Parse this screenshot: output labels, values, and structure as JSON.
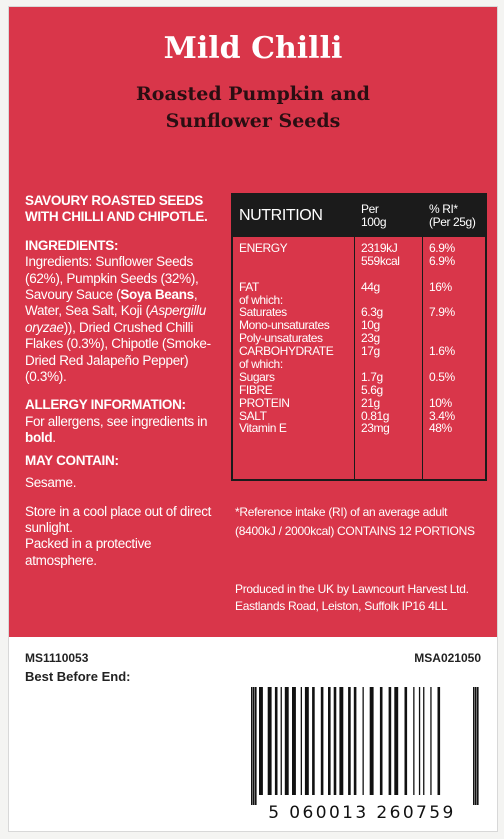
{
  "header": {
    "title": "Mild Chilli",
    "subtitle_line1": "Roasted Pumpkin and",
    "subtitle_line2": "Sunflower Seeds"
  },
  "left_panel": {
    "tagline_line1": "SAVOURY ROASTED SEEDS",
    "tagline_line2": "WITH CHILLI AND CHIPOTLE.",
    "ingredients_heading": "INGREDIENTS:",
    "ingredients": {
      "lead": "Ingredients: Sunflower Seeds (62%), Pumpkin Seeds (32%), Savoury Sauce (",
      "soya": "Soya Beans",
      "mid": ", Water, Sea Salt, Koji (",
      "latin": "Aspergillu oryzae",
      "tail": ")), Dried Crushed Chilli Flakes (0.3%), Chipotle (Smoke-Dried Red Jalapeño Pepper) (0.3%)."
    },
    "allergy_heading": "ALLERGY INFORMATION:",
    "allergy_text": "For allergens, see ingredients in ",
    "allergy_bold": "bold",
    "allergy_end": ".",
    "may_contain_heading": "MAY CONTAIN:",
    "may_contain_text": "Sesame.",
    "storage": "Store in a cool place out of direct sunlight.",
    "packed": "Packed in a protective atmosphere."
  },
  "nutrition": {
    "header_label": "NUTRITION",
    "per_line1": "Per",
    "per_line2": "100g",
    "ri_line1": "% RI*",
    "ri_line2": "(Per 25g)",
    "rows": [
      {
        "label": "ENERGY",
        "value": "2319kJ",
        "ri": "6.9%"
      },
      {
        "label": "",
        "value": "559kcal",
        "ri": "6.9%"
      },
      {
        "label": "",
        "value": "",
        "ri": ""
      },
      {
        "label": "FAT",
        "value": "44g",
        "ri": "16%"
      },
      {
        "label": "of which:",
        "value": "",
        "ri": ""
      },
      {
        "label": "Saturates",
        "value": "6.3g",
        "ri": "7.9%"
      },
      {
        "label": "Mono-unsaturates",
        "value": "10g",
        "ri": ""
      },
      {
        "label": "Poly-unsaturates",
        "value": "23g",
        "ri": ""
      },
      {
        "label": "CARBOHYDRATE",
        "value": "17g",
        "ri": "1.6%"
      },
      {
        "label": "of which:",
        "value": "",
        "ri": ""
      },
      {
        "label": "Sugars",
        "value": "1.7g",
        "ri": "0.5%"
      },
      {
        "label": "FIBRE",
        "value": "5.6g",
        "ri": ""
      },
      {
        "label": "PROTEIN",
        "value": "21g",
        "ri": "10%"
      },
      {
        "label": "SALT",
        "value": "0.81g",
        "ri": "3.4%"
      },
      {
        "label": "Vitamin E",
        "value": "23mg",
        "ri": "48%"
      }
    ]
  },
  "ri_note_line1": "*Reference intake (RI) of an average adult",
  "ri_note_line2": "(8400kJ / 2000kcal) CONTAINS 12 PORTIONS",
  "producer_line1": "Produced in the UK by Lawncourt Harvest Ltd.",
  "producer_line2": "Eastlands Road, Leiston, Suffolk IP16 4LL",
  "codes": {
    "left": "MS1110053",
    "right": "MSA021050",
    "best_before_label": "Best Before End:"
  },
  "barcode": {
    "number": "5 060013 260759"
  },
  "colors": {
    "panel_red": "#d9364a",
    "ink_dark": "#1b1b1b"
  }
}
